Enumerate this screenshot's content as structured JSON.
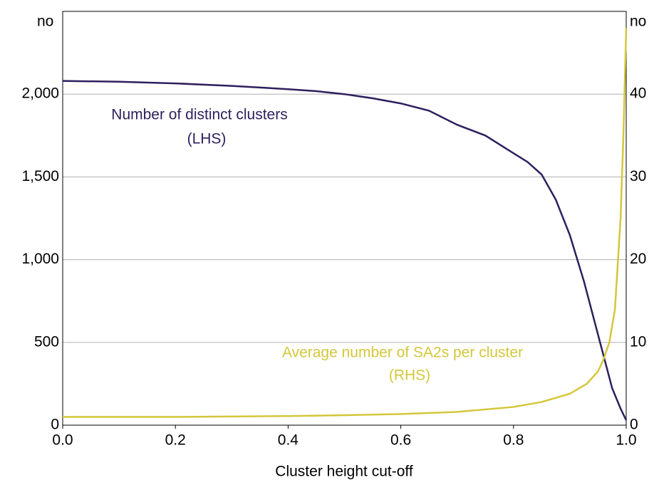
{
  "chart_data": {
    "type": "line",
    "x_label": "Cluster height cut-off",
    "y_unit": "no",
    "y2_unit": "no",
    "xlim": [
      0,
      1
    ],
    "xticks": [
      {
        "value": 0,
        "label": "0.0"
      },
      0.2,
      0.4,
      0.6,
      0.8,
      {
        "value": 1,
        "label": "1.0"
      }
    ],
    "ylim": [
      0,
      2500
    ],
    "yticks": [
      0,
      500,
      {
        "value": 1000,
        "label": "1,000"
      },
      {
        "value": 1500,
        "label": "1,500"
      },
      {
        "value": 2000,
        "label": "2,000"
      }
    ],
    "y2lim": [
      0,
      50
    ],
    "y2ticks": [
      0,
      10,
      20,
      30,
      40
    ],
    "grid": true,
    "series": [
      {
        "name": "Number of distinct clusters",
        "label": [
          "Number of distinct clusters",
          "(LHS)"
        ],
        "color": "#2e1f5e",
        "axis": "y",
        "x": [
          0,
          0.1,
          0.2,
          0.3,
          0.4,
          0.45,
          0.5,
          0.55,
          0.6,
          0.65,
          0.7,
          0.75,
          0.8,
          0.825,
          0.85,
          0.875,
          0.9,
          0.925,
          0.95,
          0.975,
          0.99,
          1
        ],
        "values": [
          2080,
          2075,
          2065,
          2050,
          2030,
          2018,
          2000,
          1975,
          1944,
          1900,
          1815,
          1750,
          1643,
          1590,
          1514,
          1363,
          1148,
          869,
          546,
          224,
          100,
          30
        ]
      },
      {
        "name": "Average number of SA2s per cluster",
        "label": [
          "Average number of SA2s per cluster",
          "(RHS)"
        ],
        "color": "#d4c73a",
        "axis": "y2",
        "x": [
          0,
          0.2,
          0.4,
          0.5,
          0.6,
          0.7,
          0.8,
          0.85,
          0.9,
          0.93,
          0.95,
          0.96,
          0.97,
          0.98,
          0.99,
          0.995,
          1
        ],
        "values": [
          1.0,
          1.0,
          1.1,
          1.2,
          1.35,
          1.6,
          2.2,
          2.8,
          3.8,
          5,
          6.5,
          8,
          10,
          14,
          25,
          35,
          48
        ]
      }
    ]
  }
}
